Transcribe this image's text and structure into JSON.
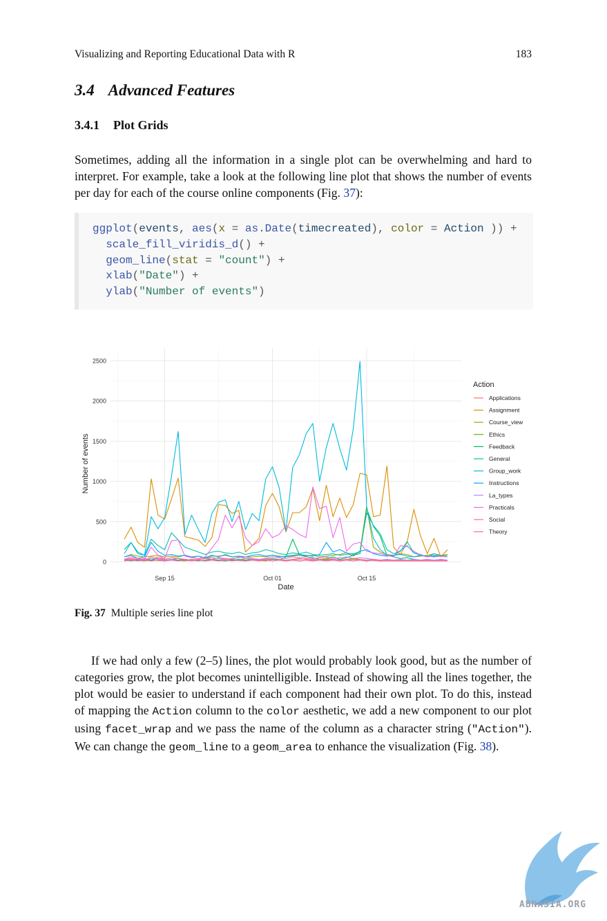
{
  "header": {
    "title": "Visualizing and Reporting Educational Data with R",
    "page_number": "183"
  },
  "section": {
    "number": "3.4",
    "title": "Advanced Features"
  },
  "subsection": {
    "number": "3.4.1",
    "title": "Plot Grids"
  },
  "intro": {
    "text_a": "Sometimes, adding all the information in a single plot can be overwhelming and hard to interpret. For example, take a look at the following line plot that shows the number of events per day for each of the course online components (Fig. ",
    "ref": "37",
    "text_b": "):"
  },
  "code": {
    "l1": {
      "fn1": "ggplot",
      "p1": "(",
      "v1": "events",
      "c1": ", ",
      "fn2": "aes",
      "p2": "(",
      "a1": "x",
      "eq1": " = ",
      "fn3": "as.Date",
      "p3": "(",
      "v2": "timecreated",
      "p4": "), ",
      "a2": "color",
      "eq2": " = ",
      "v3": "Action",
      "p5": " )) +"
    },
    "l2": {
      "fn": "scale_fill_viridis_d",
      "rest": "() +"
    },
    "l3": {
      "fn": "geom_line",
      "p1": "(",
      "arg": "stat",
      "eq": " = ",
      "str": "\"count\"",
      "rest": ") +"
    },
    "l4": {
      "fn": "xlab",
      "p1": "(",
      "str": "\"Date\"",
      "rest": ") +"
    },
    "l5": {
      "fn": "ylab",
      "p1": "(",
      "str": "\"Number of events\"",
      "rest": ")"
    }
  },
  "figure": {
    "caption_label": "Fig. 37",
    "caption_text": "Multiple series line plot"
  },
  "chart_data": {
    "type": "line",
    "title": "",
    "xlabel": "Date",
    "ylabel": "Number of events",
    "x_ticks": [
      "Sep 15",
      "Oct 01",
      "Oct 15"
    ],
    "x_range_days": [
      0,
      48
    ],
    "x_tick_days": [
      6,
      22,
      36
    ],
    "ylim": [
      0,
      2500
    ],
    "y_ticks": [
      0,
      500,
      1000,
      1500,
      2000,
      2500
    ],
    "legend_title": "Action",
    "legend_position": "right",
    "grid": true,
    "x": [
      0,
      1,
      2,
      3,
      4,
      5,
      6,
      7,
      8,
      9,
      10,
      11,
      12,
      13,
      14,
      15,
      16,
      17,
      18,
      19,
      20,
      21,
      22,
      23,
      24,
      25,
      26,
      27,
      28,
      29,
      30,
      31,
      32,
      33,
      34,
      35,
      36,
      37,
      38,
      39,
      40,
      41,
      42,
      43,
      44,
      45,
      46,
      47,
      48
    ],
    "series": [
      {
        "name": "Applications",
        "color": "#F8766D",
        "values": [
          20,
          30,
          25,
          40,
          20,
          60,
          30,
          50,
          40,
          20,
          30,
          25,
          40,
          30,
          20,
          30,
          25,
          20,
          40,
          30,
          25,
          20,
          30,
          30,
          20,
          25,
          30,
          40,
          30,
          25,
          20,
          30,
          25,
          20,
          30,
          25,
          20,
          15,
          10,
          10,
          10,
          10,
          10,
          10,
          10,
          10,
          10,
          10,
          10
        ]
      },
      {
        "name": "Assignment",
        "color": "#DB8E00",
        "values": [
          280,
          430,
          240,
          180,
          1030,
          580,
          530,
          780,
          1040,
          310,
          290,
          270,
          190,
          300,
          710,
          700,
          600,
          640,
          120,
          200,
          290,
          700,
          850,
          680,
          370,
          610,
          610,
          680,
          910,
          510,
          950,
          560,
          790,
          550,
          710,
          1100,
          1080,
          560,
          580,
          1190,
          180,
          90,
          240,
          650,
          320,
          100,
          290,
          60,
          150
        ]
      },
      {
        "name": "Course_view",
        "color": "#AEA200",
        "values": [
          60,
          90,
          70,
          60,
          70,
          80,
          60,
          70,
          60,
          80,
          50,
          70,
          40,
          70,
          70,
          80,
          60,
          70,
          60,
          60,
          70,
          60,
          80,
          70,
          60,
          70,
          80,
          70,
          80,
          60,
          70,
          80,
          90,
          110,
          70,
          130,
          690,
          180,
          120,
          90,
          80,
          100,
          90,
          60,
          70,
          80,
          100,
          80,
          90
        ]
      },
      {
        "name": "Ethics",
        "color": "#64B200",
        "values": [
          10,
          20,
          15,
          10,
          20,
          15,
          10,
          20,
          15,
          10,
          20,
          15,
          10,
          20,
          15,
          10,
          20,
          15,
          10,
          20,
          15,
          10,
          30,
          20,
          10,
          20,
          10,
          20,
          10,
          20,
          30,
          20,
          10,
          20,
          30,
          20,
          10,
          20,
          10,
          20,
          10,
          20,
          10,
          20,
          10,
          20,
          10,
          20,
          10
        ]
      },
      {
        "name": "Feedback",
        "color": "#00BD5C",
        "values": [
          20,
          10,
          20,
          30,
          20,
          40,
          20,
          30,
          20,
          30,
          20,
          10,
          20,
          30,
          20,
          10,
          20,
          30,
          20,
          30,
          20,
          40,
          30,
          20,
          60,
          280,
          90,
          60,
          50,
          30,
          40,
          60,
          30,
          50,
          80,
          100,
          660,
          440,
          320,
          80,
          60,
          40,
          50,
          30,
          20,
          10,
          20,
          10,
          20
        ]
      },
      {
        "name": "General",
        "color": "#00C1A7",
        "values": [
          150,
          240,
          120,
          80,
          280,
          200,
          150,
          360,
          270,
          180,
          150,
          120,
          90,
          120,
          130,
          110,
          100,
          120,
          90,
          110,
          120,
          150,
          130,
          100,
          90,
          110,
          100,
          120,
          90,
          80,
          90,
          100,
          80,
          90,
          100,
          120,
          610,
          450,
          350,
          150,
          100,
          130,
          250,
          110,
          80,
          60,
          80,
          70,
          60
        ]
      },
      {
        "name": "Group_work",
        "color": "#00BADE",
        "values": [
          100,
          240,
          100,
          80,
          560,
          410,
          550,
          1060,
          1620,
          340,
          580,
          400,
          240,
          600,
          740,
          770,
          500,
          750,
          400,
          600,
          510,
          1030,
          1180,
          920,
          380,
          1170,
          1330,
          1590,
          1720,
          1000,
          1420,
          1720,
          1410,
          1140,
          1650,
          2490,
          680,
          290,
          150,
          80,
          70,
          140,
          200,
          110,
          90,
          60,
          100,
          70,
          80
        ]
      },
      {
        "name": "Instructions",
        "color": "#00A6FF",
        "values": [
          60,
          80,
          40,
          60,
          240,
          130,
          80,
          90,
          70,
          80,
          60,
          70,
          50,
          80,
          60,
          90,
          60,
          70,
          60,
          80,
          90,
          70,
          80,
          60,
          70,
          80,
          90,
          80,
          70,
          90,
          240,
          120,
          150,
          110,
          90,
          130,
          150,
          100,
          80,
          70,
          80,
          90,
          70,
          60,
          80,
          70,
          60,
          70,
          60
        ]
      },
      {
        "name": "La_types",
        "color": "#B385FF",
        "values": [
          30,
          40,
          30,
          20,
          40,
          30,
          20,
          30,
          40,
          30,
          20,
          30,
          40,
          50,
          40,
          30,
          40,
          50,
          60,
          40,
          30,
          40,
          60,
          50,
          40,
          60,
          50,
          60,
          40,
          50,
          60,
          40,
          50,
          60,
          40,
          50,
          40,
          30,
          20,
          30,
          20,
          30,
          20,
          30,
          20,
          30,
          20,
          30,
          20
        ]
      },
      {
        "name": "Practicals",
        "color": "#EF67EB",
        "values": [
          30,
          60,
          40,
          30,
          180,
          80,
          40,
          260,
          270,
          70,
          50,
          40,
          60,
          170,
          280,
          580,
          420,
          570,
          300,
          200,
          250,
          410,
          300,
          340,
          450,
          400,
          340,
          300,
          930,
          660,
          690,
          300,
          550,
          130,
          220,
          240,
          130,
          110,
          100,
          80,
          60,
          200,
          190,
          130,
          80,
          60,
          70,
          70,
          60
        ]
      },
      {
        "name": "Social",
        "color": "#FF63B6",
        "values": [
          10,
          20,
          10,
          20,
          10,
          20,
          10,
          20,
          10,
          20,
          10,
          20,
          10,
          20,
          10,
          20,
          10,
          20,
          10,
          20,
          10,
          20,
          10,
          20,
          10,
          20,
          10,
          20,
          10,
          20,
          10,
          20,
          10,
          20,
          10,
          20,
          10,
          20,
          10,
          20,
          10,
          20,
          10,
          20,
          10,
          20,
          10,
          20,
          10
        ]
      },
      {
        "name": "Theory",
        "color": "#FF6C91",
        "values": [
          20,
          40,
          30,
          20,
          60,
          40,
          30,
          50,
          40,
          30,
          20,
          30,
          40,
          30,
          50,
          40,
          30,
          60,
          40,
          30,
          20,
          30,
          40,
          30,
          20,
          30,
          40,
          30,
          20,
          30,
          40,
          30,
          20,
          30,
          40,
          30,
          20,
          30,
          20,
          10,
          10,
          10,
          10,
          10,
          10,
          10,
          10,
          10,
          10
        ]
      }
    ]
  },
  "para2": {
    "t1": "If we had only a few (2–5) lines, the plot would probably look good, but as the number of categories grow, the plot becomes unintelligible. Instead of showing all the lines together, the plot would be easier to understand if each component had their own plot. To do this, instead of mapping the ",
    "c1": "Action",
    "t2": " column to the ",
    "c2": "color",
    "t3": " aesthetic, we add a new component to our plot using ",
    "c3": "facet_wrap",
    "t4": " and we pass the name of the column as a character string (",
    "c4": "\"Action\"",
    "t5": "). We can change the ",
    "c5": "geom_line",
    "t6": " to a ",
    "c6": "geom_area",
    "t7": " to enhance the visualization (Fig. ",
    "ref": "38",
    "t8": ")."
  },
  "watermark": {
    "text": "ABNASIA.ORG",
    "color": "#7fbde8"
  }
}
